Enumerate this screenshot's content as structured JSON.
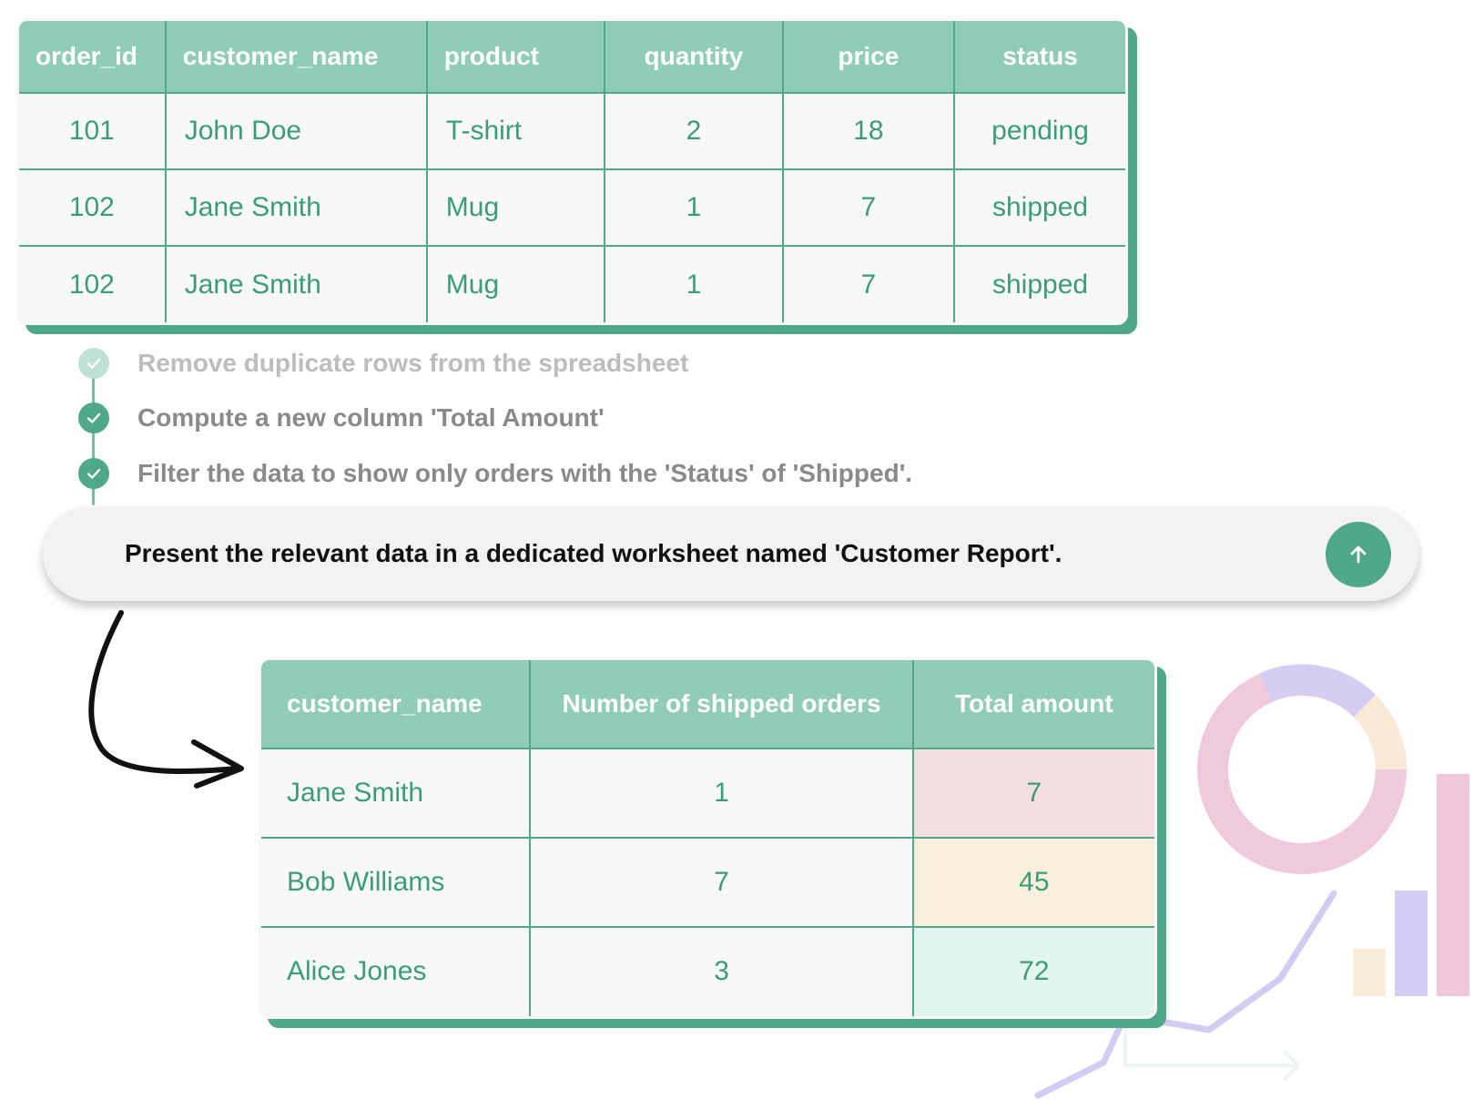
{
  "orders": {
    "columns": [
      "order_id",
      "customer_name",
      "product",
      "quantity",
      "price",
      "status"
    ],
    "rows": [
      [
        "101",
        "John Doe",
        "T-shirt",
        "2",
        "18",
        "pending"
      ],
      [
        "102",
        "Jane Smith",
        "Mug",
        "1",
        "7",
        "shipped"
      ],
      [
        "102",
        "Jane Smith",
        "Mug",
        "1",
        "7",
        "shipped"
      ]
    ]
  },
  "tasks": [
    {
      "label": "Remove duplicate rows from the spreadsheet",
      "state": "done-faded"
    },
    {
      "label": "Compute a new column 'Total Amount'",
      "state": "done"
    },
    {
      "label": "Filter the data to show only orders with the 'Status' of 'Shipped'.",
      "state": "done"
    }
  ],
  "prompt": {
    "text": "Present the relevant data in a dedicated worksheet named 'Customer Report'.",
    "send_icon": "arrow-up-icon"
  },
  "report": {
    "columns": [
      "customer_name",
      "Number of shipped orders",
      "Total amount"
    ],
    "rows": [
      [
        "Jane Smith",
        "1",
        "7"
      ],
      [
        "Bob Williams",
        "7",
        "45"
      ],
      [
        "Alice Jones",
        "3",
        "72"
      ]
    ],
    "highlight_colors": [
      "#f4dfe0",
      "#f8efdc",
      "#e2f6ee"
    ]
  },
  "colors": {
    "accent": "#4fa888",
    "header": "#91ccb6",
    "text": "#3b9c78"
  }
}
